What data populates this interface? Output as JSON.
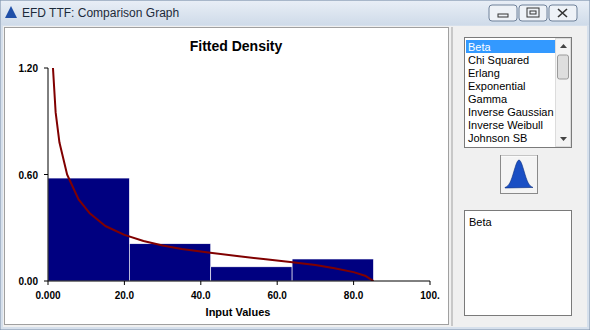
{
  "window": {
    "title": "EFD TTF: Comparison Graph",
    "list_items": [
      "Beta",
      "Chi Squared",
      "Erlang",
      "Exponential",
      "Gamma",
      "Inverse Gaussian",
      "Inverse Weibull",
      "Johnson SB"
    ],
    "selected": "Beta",
    "info_text": "Beta"
  },
  "chart_data": {
    "type": "histogram",
    "title": "Fitted Density",
    "x_label": "Input Values",
    "bins": [
      0,
      21.3,
      42.6,
      63.9,
      85.2
    ],
    "values": [
      0.58,
      0.21,
      0.08,
      0.124
    ],
    "color": "#000080",
    "series": [
      {
        "type": "line",
        "color": "#800000",
        "x": [
          1.3,
          2,
          3,
          5,
          8,
          11,
          15,
          20,
          25,
          30,
          35,
          43,
          50,
          57,
          64,
          70,
          75,
          80,
          83,
          85.2
        ],
        "values": [
          1.2,
          0.95,
          0.78,
          0.6,
          0.46,
          0.38,
          0.31,
          0.26,
          0.225,
          0.2,
          0.18,
          0.158,
          0.14,
          0.122,
          0.106,
          0.09,
          0.072,
          0.05,
          0.03,
          0.0
        ]
      }
    ],
    "xlim": [
      0,
      100
    ],
    "xticks": [
      {
        "value": 0,
        "label": "0.000"
      },
      {
        "value": 20,
        "label": "20.0"
      },
      {
        "value": 40,
        "label": "40.0"
      },
      {
        "value": 60,
        "label": "60.0"
      },
      {
        "value": 80,
        "label": "80.0"
      },
      {
        "value": 100,
        "label": "100."
      }
    ],
    "ylim": [
      0,
      1.2
    ],
    "yticks": [
      {
        "value": 0,
        "label": "0.00"
      },
      {
        "value": 0.6,
        "label": "0.60"
      },
      {
        "value": 1.2,
        "label": "1.20"
      }
    ]
  }
}
